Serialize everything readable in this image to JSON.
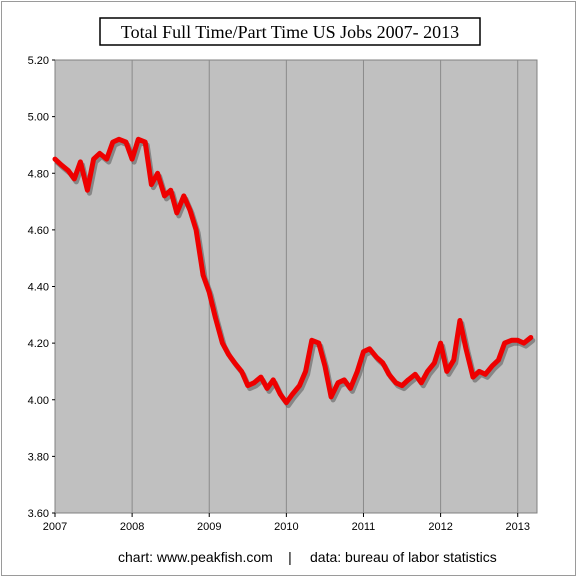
{
  "chart_data": {
    "type": "line",
    "title": "Total Full Time/Part Time US Jobs  2007- 2013",
    "xlabel": "",
    "ylabel": "",
    "x_ticks": [
      "2007",
      "2008",
      "2009",
      "2010",
      "2011",
      "2012",
      "2013"
    ],
    "y_ticks": [
      "5.20",
      "5.00",
      "4.80",
      "4.60",
      "4.40",
      "4.20",
      "4.00",
      "3.80",
      "3.60"
    ],
    "xlim": [
      2007.0,
      2013.25
    ],
    "ylim": [
      3.6,
      5.2
    ],
    "grid": "vertical",
    "series": [
      {
        "color": "#ee0000",
        "x": [
          2007.0,
          2007.08,
          2007.17,
          2007.25,
          2007.33,
          2007.42,
          2007.5,
          2007.58,
          2007.67,
          2007.75,
          2007.83,
          2007.92,
          2008.0,
          2008.08,
          2008.17,
          2008.25,
          2008.33,
          2008.42,
          2008.5,
          2008.58,
          2008.67,
          2008.75,
          2008.83,
          2008.92,
          2009.0,
          2009.08,
          2009.17,
          2009.25,
          2009.33,
          2009.42,
          2009.5,
          2009.58,
          2009.67,
          2009.75,
          2009.83,
          2009.92,
          2010.0,
          2010.08,
          2010.17,
          2010.25,
          2010.33,
          2010.42,
          2010.5,
          2010.58,
          2010.67,
          2010.75,
          2010.83,
          2010.92,
          2011.0,
          2011.08,
          2011.17,
          2011.25,
          2011.33,
          2011.42,
          2011.5,
          2011.58,
          2011.67,
          2011.75,
          2011.83,
          2011.92,
          2012.0,
          2012.08,
          2012.17,
          2012.25,
          2012.33,
          2012.42,
          2012.5,
          2012.58,
          2012.67,
          2012.75,
          2012.83,
          2012.92,
          2013.0,
          2013.08,
          2013.17
        ],
        "y": [
          4.85,
          4.83,
          4.81,
          4.78,
          4.84,
          4.74,
          4.85,
          4.87,
          4.85,
          4.91,
          4.92,
          4.91,
          4.85,
          4.92,
          4.91,
          4.76,
          4.8,
          4.72,
          4.74,
          4.66,
          4.72,
          4.67,
          4.6,
          4.44,
          4.38,
          4.29,
          4.2,
          4.16,
          4.13,
          4.1,
          4.05,
          4.06,
          4.08,
          4.04,
          4.07,
          4.02,
          3.99,
          4.02,
          4.05,
          4.1,
          4.21,
          4.2,
          4.12,
          4.01,
          4.06,
          4.07,
          4.04,
          4.1,
          4.17,
          4.18,
          4.15,
          4.13,
          4.09,
          4.06,
          4.05,
          4.07,
          4.09,
          4.06,
          4.1,
          4.13,
          4.2,
          4.1,
          4.14,
          4.28,
          4.18,
          4.08,
          4.1,
          4.09,
          4.12,
          4.14,
          4.2,
          4.21,
          4.21,
          4.2,
          4.22
        ]
      }
    ]
  },
  "footer": {
    "source_text": "chart: www.peakfish.com",
    "separator": "|",
    "data_text": "data: bureau of labor statistics"
  },
  "colors": {
    "plot_background": "#c0c0c0",
    "line": "#ee0000",
    "shadow": "#555555"
  }
}
